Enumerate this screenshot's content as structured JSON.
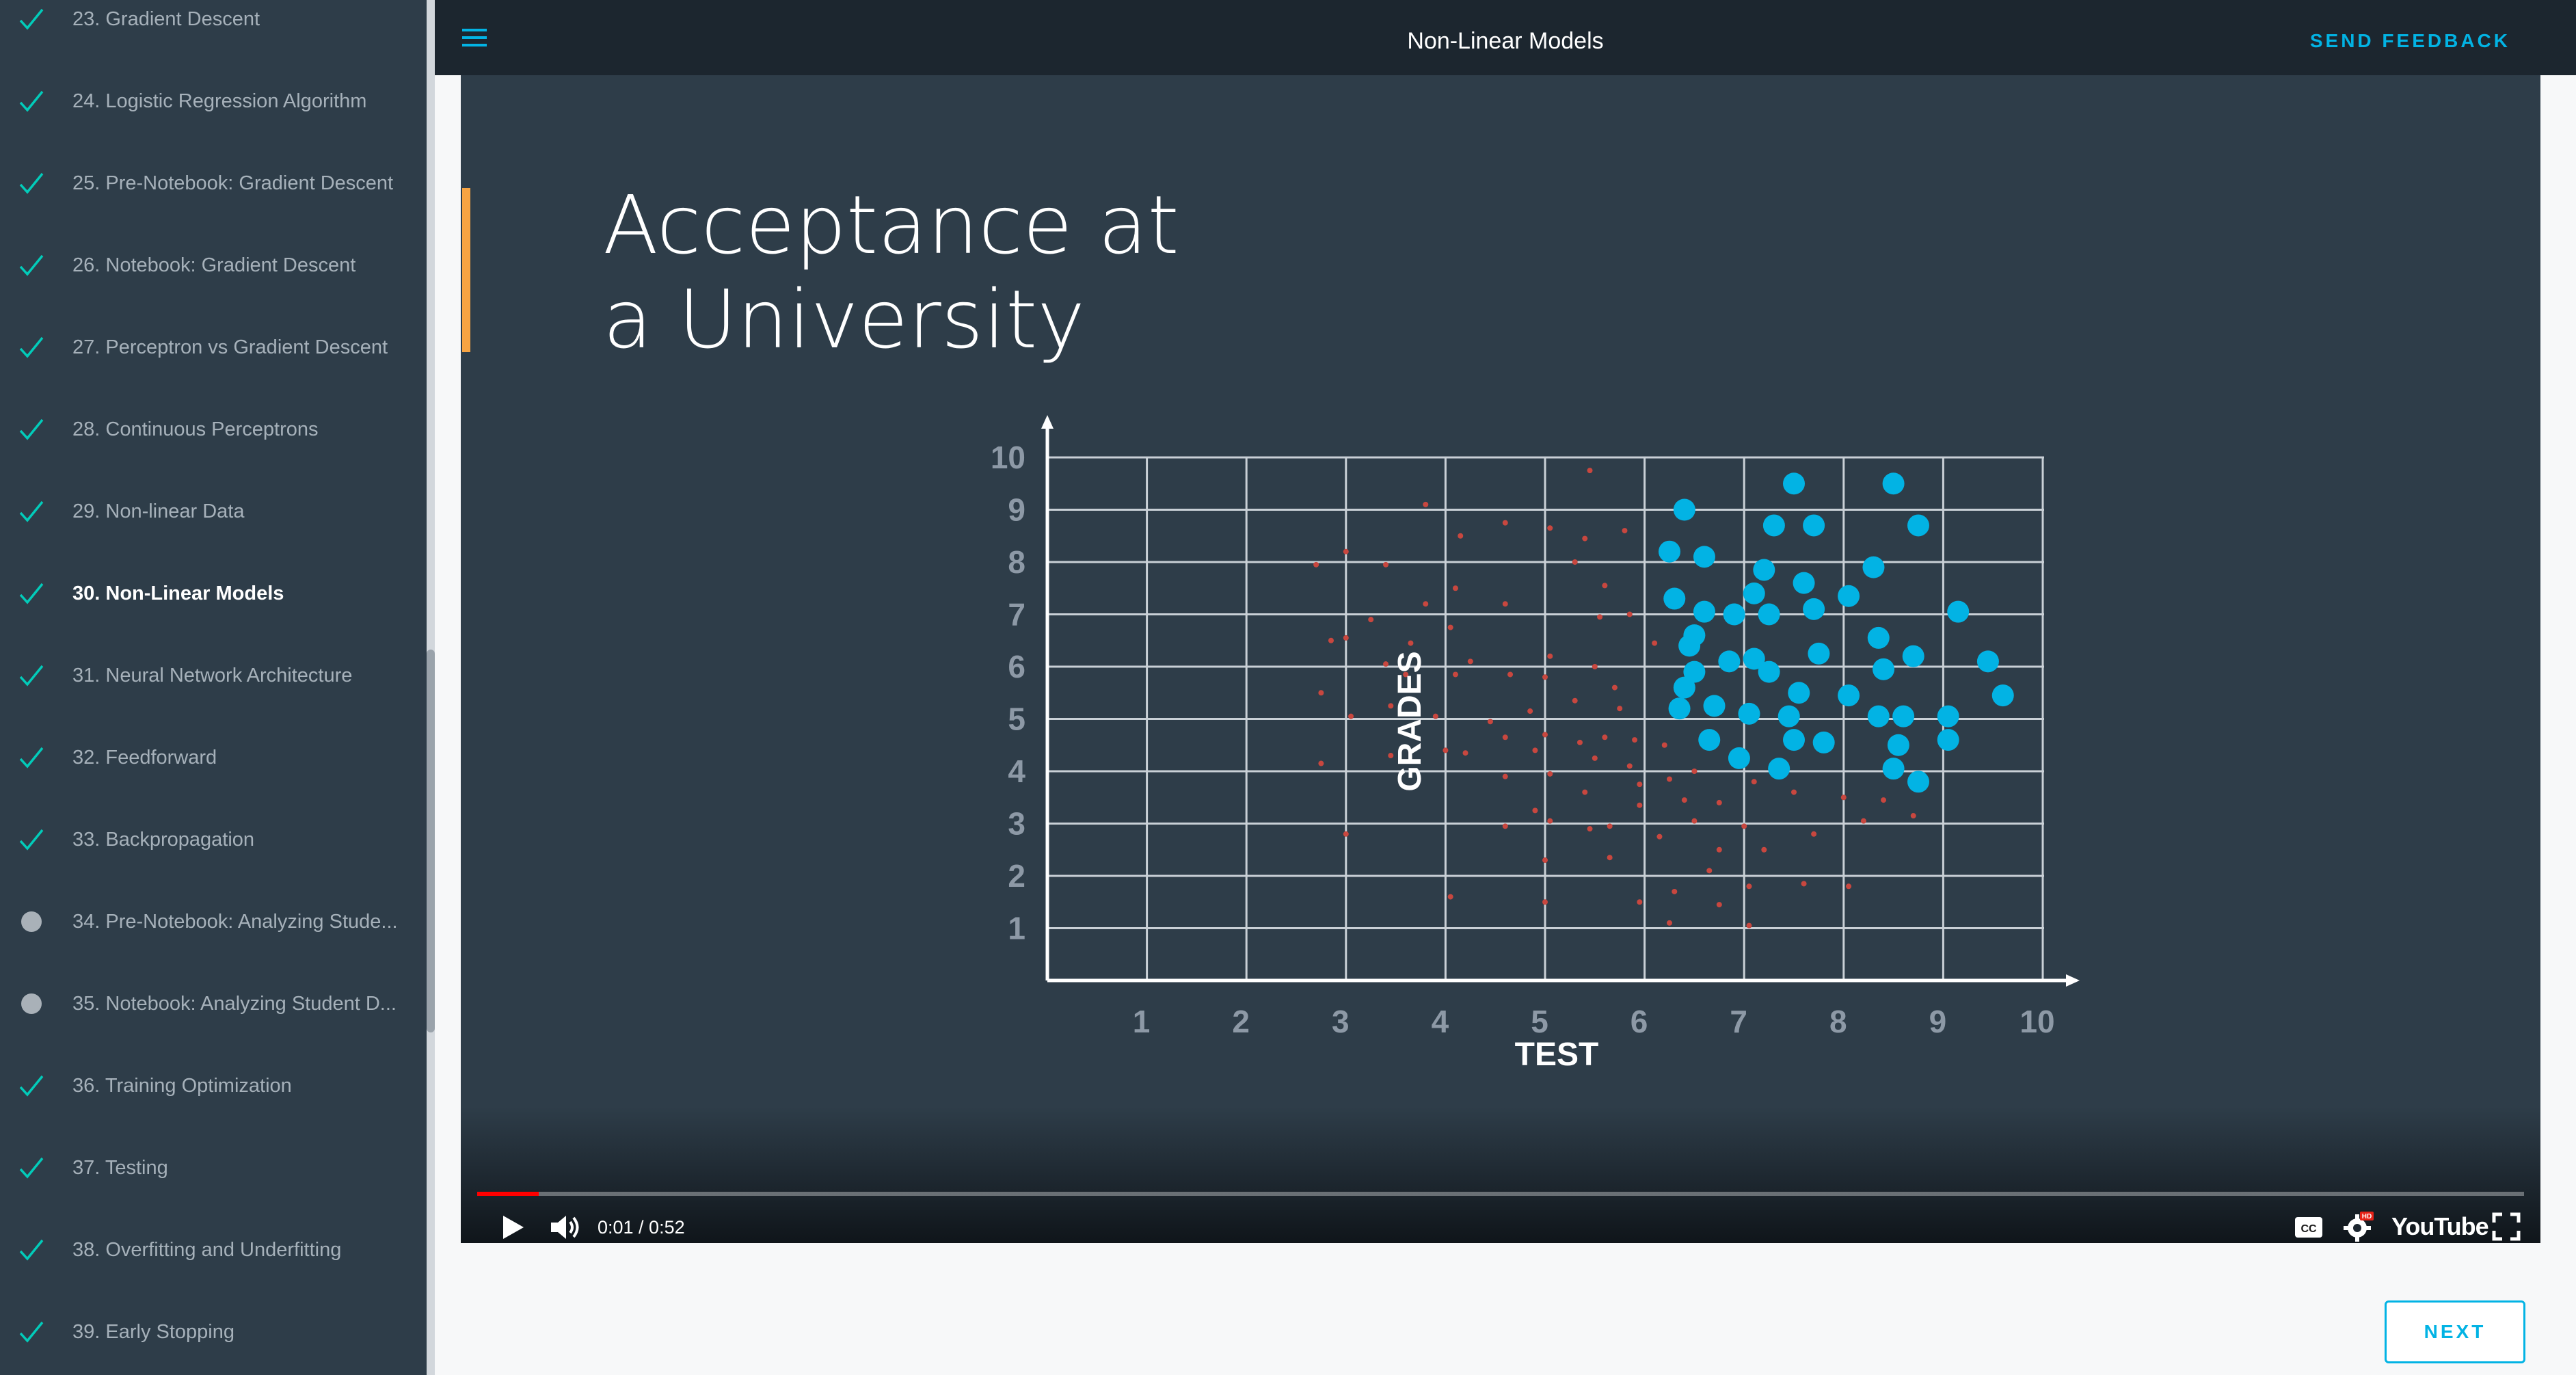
{
  "app": {
    "page_title": "Non-Linear Models",
    "send_feedback_label": "SEND FEEDBACK",
    "next_label": "NEXT",
    "accent_color": "#02b3e4"
  },
  "sidebar": {
    "items": [
      {
        "label": "23. Gradient Descent",
        "status": "done"
      },
      {
        "label": "24. Logistic Regression Algorithm",
        "status": "done"
      },
      {
        "label": "25. Pre-Notebook: Gradient Descent",
        "status": "done"
      },
      {
        "label": "26. Notebook: Gradient Descent",
        "status": "done"
      },
      {
        "label": "27. Perceptron vs Gradient Descent",
        "status": "done"
      },
      {
        "label": "28. Continuous Perceptrons",
        "status": "done"
      },
      {
        "label": "29. Non-linear Data",
        "status": "done"
      },
      {
        "label": "30. Non-Linear Models",
        "status": "done",
        "active": true
      },
      {
        "label": "31. Neural Network Architecture",
        "status": "done"
      },
      {
        "label": "32. Feedforward",
        "status": "done"
      },
      {
        "label": "33. Backpropagation",
        "status": "done"
      },
      {
        "label": "34. Pre-Notebook: Analyzing Stude...",
        "status": "incomplete"
      },
      {
        "label": "35. Notebook: Analyzing Student D...",
        "status": "incomplete"
      },
      {
        "label": "36. Training Optimization",
        "status": "done"
      },
      {
        "label": "37. Testing",
        "status": "done"
      },
      {
        "label": "38. Overfitting and Underfitting",
        "status": "done"
      },
      {
        "label": "39. Early Stopping",
        "status": "done"
      }
    ]
  },
  "video": {
    "slide_title_line1": "Acceptance at",
    "slide_title_line2": "a University",
    "time": "0:01 / 0:52",
    "progress": 0.012,
    "youtube_label": "YouTube",
    "hd_badge": "HD"
  },
  "chart_data": {
    "type": "scatter",
    "xlabel": "TEST",
    "ylabel": "GRADES",
    "xlim": [
      0,
      10
    ],
    "ylim": [
      0,
      10
    ],
    "x_ticks": [
      1,
      2,
      3,
      4,
      5,
      6,
      7,
      8,
      9,
      10
    ],
    "y_ticks": [
      1,
      2,
      3,
      4,
      5,
      6,
      7,
      8,
      9,
      10
    ],
    "grid": true,
    "series": [
      {
        "color": "#02b3e4",
        "marker": "large-dot",
        "points": [
          [
            6.4,
            9.0
          ],
          [
            7.5,
            9.5
          ],
          [
            8.5,
            9.5
          ],
          [
            7.3,
            8.7
          ],
          [
            7.7,
            8.7
          ],
          [
            8.75,
            8.7
          ],
          [
            6.25,
            8.2
          ],
          [
            6.6,
            8.1
          ],
          [
            7.2,
            7.85
          ],
          [
            8.3,
            7.9
          ],
          [
            6.3,
            7.3
          ],
          [
            6.6,
            7.05
          ],
          [
            6.9,
            7.0
          ],
          [
            7.1,
            7.4
          ],
          [
            7.6,
            7.6
          ],
          [
            8.05,
            7.35
          ],
          [
            7.25,
            7.0
          ],
          [
            7.7,
            7.1
          ],
          [
            9.15,
            7.05
          ],
          [
            6.5,
            6.6
          ],
          [
            6.45,
            6.4
          ],
          [
            6.85,
            6.1
          ],
          [
            7.1,
            6.15
          ],
          [
            7.25,
            5.9
          ],
          [
            7.75,
            6.25
          ],
          [
            8.35,
            6.55
          ],
          [
            8.7,
            6.2
          ],
          [
            9.45,
            6.1
          ],
          [
            6.4,
            5.6
          ],
          [
            6.5,
            5.9
          ],
          [
            6.7,
            5.25
          ],
          [
            7.05,
            5.1
          ],
          [
            7.55,
            5.5
          ],
          [
            8.05,
            5.45
          ],
          [
            8.4,
            5.95
          ],
          [
            6.35,
            5.2
          ],
          [
            7.45,
            5.05
          ],
          [
            8.35,
            5.05
          ],
          [
            8.6,
            5.05
          ],
          [
            9.05,
            5.05
          ],
          [
            9.6,
            5.45
          ],
          [
            6.65,
            4.6
          ],
          [
            6.95,
            4.25
          ],
          [
            7.5,
            4.6
          ],
          [
            7.8,
            4.55
          ],
          [
            8.55,
            4.5
          ],
          [
            9.05,
            4.6
          ],
          [
            7.35,
            4.05
          ],
          [
            8.5,
            4.05
          ],
          [
            8.75,
            3.8
          ]
        ]
      },
      {
        "color": "#c8473f",
        "marker": "small-dot",
        "points": [
          [
            5.45,
            9.75
          ],
          [
            3.8,
            9.1
          ],
          [
            4.6,
            8.75
          ],
          [
            5.05,
            8.65
          ],
          [
            4.15,
            8.5
          ],
          [
            5.4,
            8.45
          ],
          [
            5.8,
            8.6
          ],
          [
            3.0,
            8.2
          ],
          [
            2.7,
            7.95
          ],
          [
            3.4,
            7.95
          ],
          [
            5.3,
            8.0
          ],
          [
            5.6,
            7.55
          ],
          [
            4.1,
            7.5
          ],
          [
            3.8,
            7.2
          ],
          [
            4.6,
            7.2
          ],
          [
            5.55,
            6.95
          ],
          [
            5.85,
            7.0
          ],
          [
            3.25,
            6.9
          ],
          [
            4.05,
            6.75
          ],
          [
            2.85,
            6.5
          ],
          [
            3.0,
            6.55
          ],
          [
            3.65,
            6.45
          ],
          [
            6.1,
            6.45
          ],
          [
            4.25,
            6.1
          ],
          [
            5.05,
            6.2
          ],
          [
            3.4,
            6.05
          ],
          [
            3.6,
            5.85
          ],
          [
            4.1,
            5.85
          ],
          [
            4.65,
            5.85
          ],
          [
            5.0,
            5.8
          ],
          [
            5.5,
            6.0
          ],
          [
            5.7,
            5.6
          ],
          [
            2.75,
            5.5
          ],
          [
            3.45,
            5.25
          ],
          [
            5.3,
            5.35
          ],
          [
            5.75,
            5.2
          ],
          [
            3.05,
            5.05
          ],
          [
            3.9,
            5.05
          ],
          [
            4.85,
            5.15
          ],
          [
            4.45,
            4.95
          ],
          [
            5.0,
            4.7
          ],
          [
            5.35,
            4.55
          ],
          [
            5.6,
            4.65
          ],
          [
            5.9,
            4.6
          ],
          [
            6.2,
            4.5
          ],
          [
            4.0,
            4.4
          ],
          [
            4.2,
            4.35
          ],
          [
            4.6,
            4.65
          ],
          [
            4.9,
            4.4
          ],
          [
            5.5,
            4.25
          ],
          [
            5.85,
            4.1
          ],
          [
            3.45,
            4.3
          ],
          [
            2.75,
            4.15
          ],
          [
            4.6,
            3.9
          ],
          [
            5.05,
            3.95
          ],
          [
            5.95,
            3.75
          ],
          [
            6.25,
            3.85
          ],
          [
            6.5,
            4.0
          ],
          [
            7.1,
            3.8
          ],
          [
            7.5,
            3.6
          ],
          [
            5.4,
            3.6
          ],
          [
            6.4,
            3.45
          ],
          [
            6.75,
            3.4
          ],
          [
            8.0,
            3.5
          ],
          [
            8.4,
            3.45
          ],
          [
            4.9,
            3.25
          ],
          [
            5.95,
            3.35
          ],
          [
            6.5,
            3.05
          ],
          [
            7.0,
            2.95
          ],
          [
            8.2,
            3.05
          ],
          [
            8.7,
            3.15
          ],
          [
            4.6,
            2.95
          ],
          [
            5.05,
            3.05
          ],
          [
            5.45,
            2.9
          ],
          [
            5.65,
            2.95
          ],
          [
            3.0,
            2.8
          ],
          [
            6.15,
            2.75
          ],
          [
            6.75,
            2.5
          ],
          [
            7.2,
            2.5
          ],
          [
            7.7,
            2.8
          ],
          [
            5.0,
            2.3
          ],
          [
            5.65,
            2.35
          ],
          [
            6.65,
            2.1
          ],
          [
            7.6,
            1.85
          ],
          [
            8.05,
            1.8
          ],
          [
            4.05,
            1.6
          ],
          [
            5.0,
            1.5
          ],
          [
            5.95,
            1.5
          ],
          [
            6.3,
            1.7
          ],
          [
            6.75,
            1.45
          ],
          [
            7.05,
            1.8
          ],
          [
            6.25,
            1.1
          ],
          [
            7.05,
            1.05
          ]
        ]
      }
    ]
  }
}
